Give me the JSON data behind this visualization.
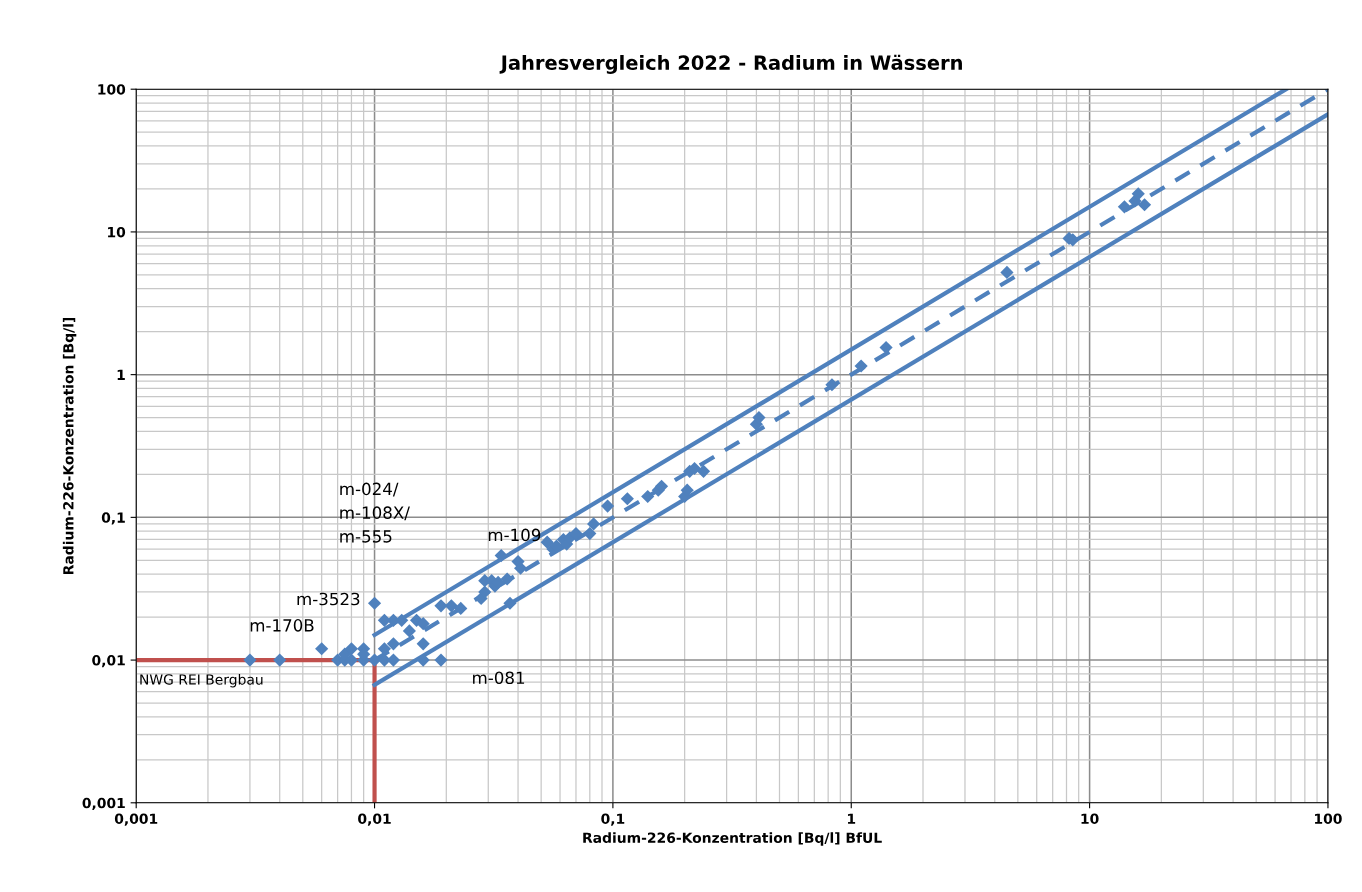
{
  "chart_data": {
    "type": "scatter",
    "title": "Jahresvergleich 2022 - Radium in Wässern",
    "xlabel": "Radium-226-Konzentration [Bq/l] BfUL",
    "ylabel": "Radium-226-Konzentration [Bq/l]",
    "log": "xy",
    "grid": true,
    "legend": false,
    "xlim": [
      0.001,
      100
    ],
    "ylim": [
      0.001,
      100
    ],
    "xticks": [
      {
        "value": 0.001,
        "label": "0,001"
      },
      {
        "value": 0.01,
        "label": "0,01"
      },
      {
        "value": 0.1,
        "label": "0,1"
      },
      {
        "value": 1,
        "label": "1"
      },
      {
        "value": 10,
        "label": "10"
      },
      {
        "value": 100,
        "label": "100"
      }
    ],
    "yticks": [
      {
        "value": 0.001,
        "label": "0,001"
      },
      {
        "value": 0.01,
        "label": "0,01"
      },
      {
        "value": 0.1,
        "label": "0,1"
      },
      {
        "value": 1,
        "label": "1"
      },
      {
        "value": 10,
        "label": "10"
      },
      {
        "value": 100,
        "label": "100"
      }
    ],
    "series": [
      {
        "type": "line",
        "line_style": "solid",
        "color": "#c0504d",
        "x": [
          0.001,
          0.01,
          0.01
        ],
        "values": [
          0.01,
          0.01,
          0.001
        ]
      },
      {
        "type": "line",
        "line_style": "solid",
        "color": "#4f81bd",
        "x": [
          0.01,
          66.7
        ],
        "values": [
          0.015,
          100
        ]
      },
      {
        "type": "line",
        "line_style": "dashed",
        "color": "#4f81bd",
        "x": [
          0.01,
          100
        ],
        "values": [
          0.01,
          100
        ]
      },
      {
        "type": "line",
        "line_style": "solid",
        "color": "#4f81bd",
        "x": [
          0.01,
          100
        ],
        "values": [
          0.0067,
          66.7
        ]
      },
      {
        "marker": "diamond",
        "color": "#4f81bd",
        "x": [
          0.003,
          0.004,
          0.007,
          0.0075,
          0.008,
          0.009,
          0.01,
          0.011,
          0.012,
          0.016,
          0.019,
          0.006,
          0.01,
          0.0075,
          0.008,
          0.009,
          0.009,
          0.011,
          0.012,
          0.012,
          0.011,
          0.013,
          0.014,
          0.015,
          0.016,
          0.016,
          0.019,
          0.021,
          0.023,
          0.028,
          0.029,
          0.029,
          0.031,
          0.032,
          0.033,
          0.036,
          0.037,
          0.034,
          0.04,
          0.041,
          0.053,
          0.056,
          0.058,
          0.062,
          0.064,
          0.066,
          0.07,
          0.08,
          0.083,
          0.095,
          0.115,
          0.14,
          0.155,
          0.16,
          0.2,
          0.205,
          0.21,
          0.22,
          0.24,
          0.4,
          0.41,
          0.83,
          1.1,
          1.4,
          4.5,
          8.2,
          8.5,
          14,
          15.5,
          16,
          17
        ],
        "values": [
          0.01,
          0.01,
          0.01,
          0.01,
          0.01,
          0.01,
          0.01,
          0.01,
          0.01,
          0.01,
          0.01,
          0.012,
          0.025,
          0.011,
          0.012,
          0.012,
          0.011,
          0.012,
          0.013,
          0.019,
          0.019,
          0.019,
          0.016,
          0.019,
          0.018,
          0.013,
          0.024,
          0.024,
          0.023,
          0.027,
          0.03,
          0.036,
          0.036,
          0.033,
          0.035,
          0.037,
          0.025,
          0.054,
          0.049,
          0.044,
          0.067,
          0.06,
          0.063,
          0.07,
          0.065,
          0.072,
          0.077,
          0.077,
          0.09,
          0.12,
          0.135,
          0.14,
          0.155,
          0.165,
          0.14,
          0.155,
          0.21,
          0.22,
          0.21,
          0.45,
          0.5,
          0.85,
          1.15,
          1.55,
          5.2,
          9,
          8.8,
          15,
          16.5,
          18.5,
          15.5
        ]
      }
    ],
    "annotations": [
      {
        "text": "m-170B",
        "x": 0.006,
        "y": 0.012
      },
      {
        "text": "m-3523",
        "x": 0.01,
        "y": 0.025
      },
      "m-024/\nm-108X/\nm-555",
      {
        "text": "m-109",
        "x": 0.034,
        "y": 0.054
      },
      {
        "text": "m-081",
        "x": 0.019,
        "y": 0.01
      },
      {
        "text": "NWG REI Bergbau",
        "x": 0.001,
        "y": 0.01
      }
    ]
  }
}
